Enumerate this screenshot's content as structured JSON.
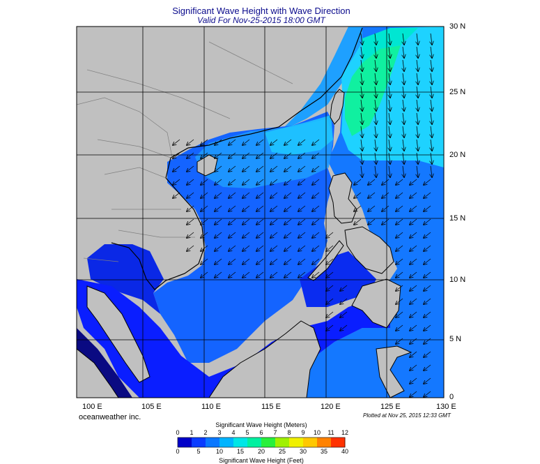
{
  "header": {
    "title": "Significant Wave Height with Wave Direction",
    "subtitle": "Valid For Nov-25-2015 18:00 GMT"
  },
  "axes": {
    "longitude_labels": [
      "100 E",
      "105 E",
      "110 E",
      "115 E",
      "120 E",
      "125 E",
      "130 E"
    ],
    "latitude_labels": [
      "30 N",
      "25 N",
      "20 N",
      "15 N",
      "10 N",
      "5 N",
      "0"
    ]
  },
  "footer": {
    "credit": "oceanweather inc.",
    "plotted": "Plotted at Nov 25, 2015 12:33 GMT"
  },
  "colorbar": {
    "title_meters": "Significant Wave Height (Meters)",
    "title_feet": "Significant Wave Height (Feet)",
    "meter_ticks": [
      "0",
      "1",
      "2",
      "3",
      "4",
      "5",
      "6",
      "7",
      "8",
      "9",
      "10",
      "11",
      "12"
    ],
    "feet_ticks": [
      "0",
      "5",
      "10",
      "15",
      "20",
      "25",
      "30",
      "35",
      "40"
    ],
    "colors": [
      "#0000c8",
      "#0a3cff",
      "#0a78ff",
      "#00b4ff",
      "#00e6e6",
      "#00f0a0",
      "#28f03c",
      "#a0f000",
      "#f0f000",
      "#ffc800",
      "#ff8200",
      "#ff3200"
    ]
  },
  "colors": {
    "land": "#c0c0c0",
    "deep_blue": "#0a1eff",
    "mid_blue": "#1e6eff",
    "light_blue": "#1eb4ff",
    "cyan": "#00dcf0",
    "green": "#10f0a0"
  }
}
